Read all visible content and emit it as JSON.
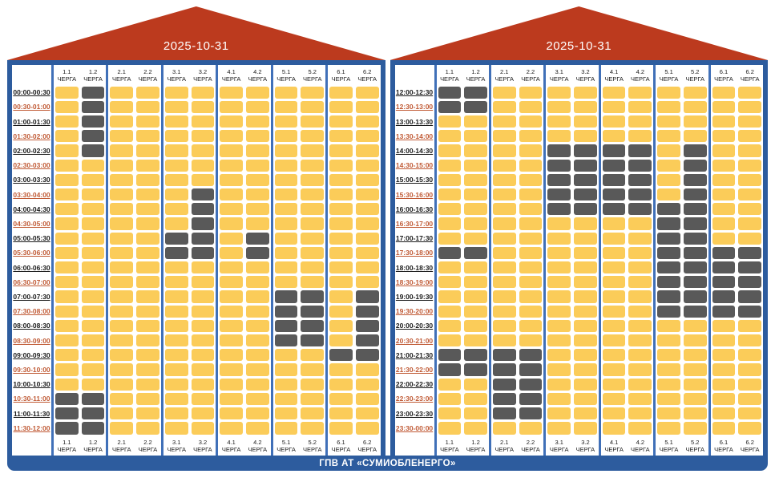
{
  "colors": {
    "on": "#FBCC59",
    "off": "#595959",
    "roof": "#BC3A1E",
    "frame": "#2D5C9E",
    "divider": "#4070B8",
    "time_alt": "#C05A35"
  },
  "chart_data": {
    "type": "heatmap",
    "title": "ГПВ АТ «СУМИОБЛЕНЕРГО»",
    "columns": [
      "1.1",
      "1.2",
      "2.1",
      "2.2",
      "3.1",
      "3.2",
      "4.1",
      "4.2",
      "5.1",
      "5.2",
      "6.1",
      "6.2"
    ],
    "column_suffix": "ЧЕРГА",
    "legend": {
      "on_color": "#FBCC59",
      "off_color": "#595959"
    },
    "panels": [
      {
        "date": "2025-10-31",
        "rows": [
          {
            "time": "00:00-00:30",
            "off": [
              "1.2"
            ]
          },
          {
            "time": "00:30-01:00",
            "off": [
              "1.2"
            ]
          },
          {
            "time": "01:00-01:30",
            "off": [
              "1.2"
            ]
          },
          {
            "time": "01:30-02:00",
            "off": [
              "1.2"
            ]
          },
          {
            "time": "02:00-02:30",
            "off": [
              "1.2"
            ]
          },
          {
            "time": "02:30-03:00",
            "off": []
          },
          {
            "time": "03:00-03:30",
            "off": []
          },
          {
            "time": "03:30-04:00",
            "off": [
              "3.2"
            ]
          },
          {
            "time": "04:00-04:30",
            "off": [
              "3.2"
            ]
          },
          {
            "time": "04:30-05:00",
            "off": [
              "3.2"
            ]
          },
          {
            "time": "05:00-05:30",
            "off": [
              "3.1",
              "3.2",
              "4.2"
            ]
          },
          {
            "time": "05:30-06:00",
            "off": [
              "3.1",
              "3.2",
              "4.2"
            ]
          },
          {
            "time": "06:00-06:30",
            "off": []
          },
          {
            "time": "06:30-07:00",
            "off": []
          },
          {
            "time": "07:00-07:30",
            "off": [
              "5.1",
              "5.2",
              "6.2"
            ]
          },
          {
            "time": "07:30-08:00",
            "off": [
              "5.1",
              "5.2",
              "6.2"
            ]
          },
          {
            "time": "08:00-08:30",
            "off": [
              "5.1",
              "5.2",
              "6.2"
            ]
          },
          {
            "time": "08:30-09:00",
            "off": [
              "5.1",
              "5.2",
              "6.2"
            ]
          },
          {
            "time": "09:00-09:30",
            "off": [
              "6.1",
              "6.2"
            ]
          },
          {
            "time": "09:30-10:00",
            "off": []
          },
          {
            "time": "10:00-10:30",
            "off": []
          },
          {
            "time": "10:30-11:00",
            "off": [
              "1.1",
              "1.2"
            ]
          },
          {
            "time": "11:00-11:30",
            "off": [
              "1.1",
              "1.2"
            ]
          },
          {
            "time": "11:30-12:00",
            "off": [
              "1.1",
              "1.2"
            ]
          }
        ]
      },
      {
        "date": "2025-10-31",
        "rows": [
          {
            "time": "12:00-12:30",
            "off": [
              "1.1",
              "1.2"
            ]
          },
          {
            "time": "12:30-13:00",
            "off": [
              "1.1",
              "1.2"
            ]
          },
          {
            "time": "13:00-13:30",
            "off": []
          },
          {
            "time": "13:30-14:00",
            "off": []
          },
          {
            "time": "14:00-14:30",
            "off": [
              "3.1",
              "3.2",
              "4.1",
              "4.2",
              "5.2"
            ]
          },
          {
            "time": "14:30-15:00",
            "off": [
              "3.1",
              "3.2",
              "4.1",
              "4.2",
              "5.2"
            ]
          },
          {
            "time": "15:00-15:30",
            "off": [
              "3.1",
              "3.2",
              "4.1",
              "4.2",
              "5.2"
            ]
          },
          {
            "time": "15:30-16:00",
            "off": [
              "3.1",
              "3.2",
              "4.1",
              "4.2",
              "5.2"
            ]
          },
          {
            "time": "16:00-16:30",
            "off": [
              "3.1",
              "3.2",
              "4.1",
              "4.2",
              "5.1",
              "5.2"
            ]
          },
          {
            "time": "16:30-17:00",
            "off": [
              "5.1",
              "5.2"
            ]
          },
          {
            "time": "17:00-17:30",
            "off": [
              "5.1",
              "5.2"
            ]
          },
          {
            "time": "17:30-18:00",
            "off": [
              "1.1",
              "1.2",
              "5.1",
              "5.2",
              "6.1",
              "6.2"
            ]
          },
          {
            "time": "18:00-18:30",
            "off": [
              "5.1",
              "5.2",
              "6.1",
              "6.2"
            ]
          },
          {
            "time": "18:30-19:00",
            "off": [
              "5.1",
              "5.2",
              "6.1",
              "6.2"
            ]
          },
          {
            "time": "19:00-19:30",
            "off": [
              "5.1",
              "5.2",
              "6.1",
              "6.2"
            ]
          },
          {
            "time": "19:30-20:00",
            "off": [
              "5.1",
              "5.2",
              "6.1",
              "6.2"
            ]
          },
          {
            "time": "20:00-20:30",
            "off": []
          },
          {
            "time": "20:30-21:00",
            "off": []
          },
          {
            "time": "21:00-21:30",
            "off": [
              "1.1",
              "1.2",
              "2.1",
              "2.2"
            ]
          },
          {
            "time": "21:30-22:00",
            "off": [
              "1.1",
              "1.2",
              "2.1",
              "2.2"
            ]
          },
          {
            "time": "22:00-22:30",
            "off": [
              "2.1",
              "2.2"
            ]
          },
          {
            "time": "22:30-23:00",
            "off": [
              "2.1",
              "2.2"
            ]
          },
          {
            "time": "23:00-23:30",
            "off": [
              "2.1",
              "2.2"
            ]
          },
          {
            "time": "23:30-00:00",
            "off": []
          }
        ]
      }
    ]
  },
  "footer": {
    "label": "ГПВ АТ «СУМИОБЛЕНЕРГО»"
  }
}
